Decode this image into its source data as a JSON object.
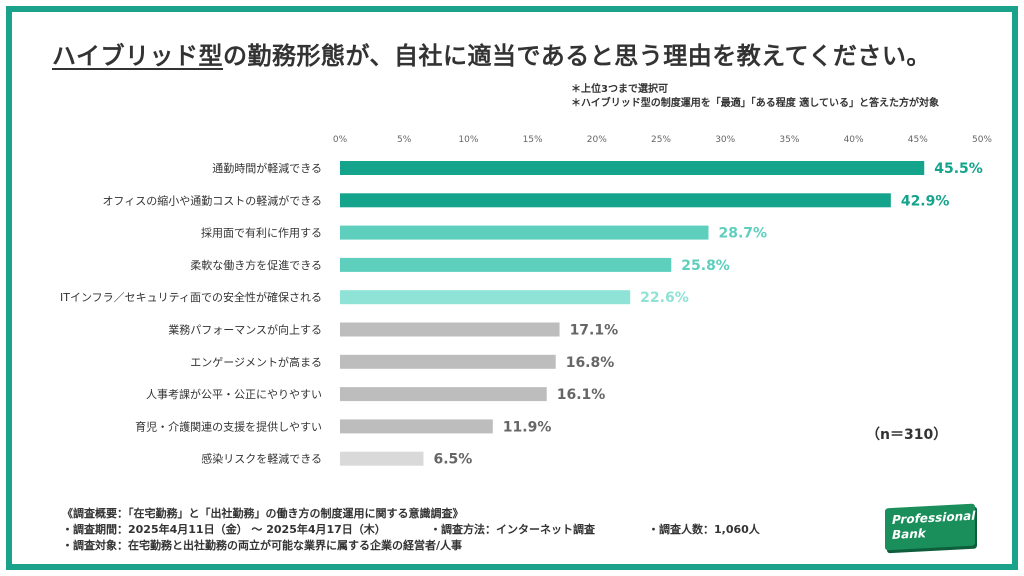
{
  "header": {
    "title_underlined": "ハイブリッド型",
    "title_rest": "の勤務形態が、自社に適当であると思う理由を教えてください。",
    "note1": "＊上位3つまで選択可",
    "note2": "＊ハイブリッド型の制度運用を「最適」「ある程度 適している」と答えた方が対象"
  },
  "sample_size": "（n＝310）",
  "footer": {
    "line1": "《調査概要：「在宅勤務」と「出社勤務」の働き方の制度運用に関する意識調査》",
    "line2a": "・調査期間：2025年4月11日（金） 〜 2025年4月17日（木）",
    "line2b": "・調査方法：インターネット調査",
    "line2c": "・調査人数：1,060人",
    "line3": "・調査対象：在宅勤務と出社勤務の両立が可能な業界に属する企業の経営者/人事"
  },
  "logo": {
    "line1": "Professional",
    "line2": "Bank"
  },
  "chart_data": {
    "type": "bar",
    "orientation": "horizontal",
    "categories": [
      "通勤時間が軽減できる",
      "オフィスの縮小や通勤コストの軽減ができる",
      "採用面で有利に作用する",
      "柔軟な働き方を促進できる",
      "ITインフラ／セキュリティ面での安全性が確保される",
      "業務パフォーマンスが向上する",
      "エンゲージメントが高まる",
      "人事考課が公平・公正にやりやすい",
      "育児・介護関連の支援を提供しやすい",
      "感染リスクを軽減できる"
    ],
    "values": [
      45.5,
      42.9,
      28.7,
      25.8,
      22.6,
      17.1,
      16.8,
      16.1,
      11.9,
      6.5
    ],
    "value_labels": [
      "45.5%",
      "42.9%",
      "28.7%",
      "25.8%",
      "22.6%",
      "17.1%",
      "16.8%",
      "16.1%",
      "11.9%",
      "6.5%"
    ],
    "bar_colors": [
      "#14a38b",
      "#14a38b",
      "#5fcfbd",
      "#5fcfbd",
      "#8fe3d6",
      "#bdbdbd",
      "#bdbdbd",
      "#bdbdbd",
      "#bdbdbd",
      "#d9d9d9"
    ],
    "label_colors": [
      "#14a38b",
      "#14a38b",
      "#5fcfbd",
      "#5fcfbd",
      "#8fe3d6",
      "#666666",
      "#666666",
      "#666666",
      "#666666",
      "#666666"
    ],
    "xlim": [
      0,
      50
    ],
    "xticks": [
      "0%",
      "5%",
      "10%",
      "15%",
      "20%",
      "25%",
      "30%",
      "35%",
      "40%",
      "45%",
      "50%"
    ],
    "grid": false
  }
}
